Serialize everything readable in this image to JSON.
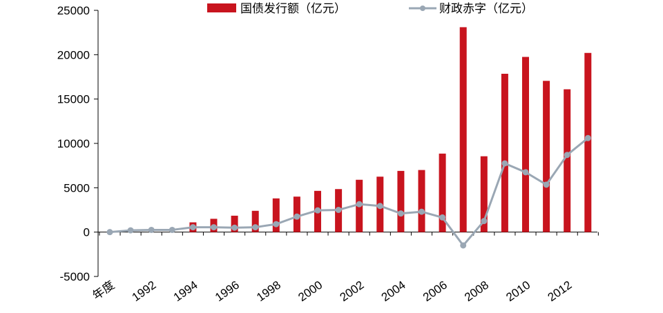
{
  "chart_data": {
    "type": "bar+line",
    "x_label_first": "年度",
    "x_tick_labels": [
      "年度",
      "1992",
      "1994",
      "1996",
      "1998",
      "2000",
      "2002",
      "2004",
      "2006",
      "2008",
      "2010",
      "2012"
    ],
    "categories": [
      "1990",
      "1991",
      "1992",
      "1993",
      "1994",
      "1995",
      "1996",
      "1997",
      "1998",
      "1999",
      "2000",
      "2001",
      "2002",
      "2003",
      "2004",
      "2005",
      "2006",
      "2007",
      "2008",
      "2009",
      "2010",
      "2011",
      "2012",
      "2013"
    ],
    "series": [
      {
        "name": "国债发行额（亿元）",
        "type": "bar",
        "color": "#c8141e",
        "values": [
          0,
          0,
          0,
          0,
          1100,
          1500,
          1850,
          2400,
          3800,
          4000,
          4650,
          4850,
          5900,
          6250,
          6900,
          7000,
          8850,
          23100,
          8550,
          17850,
          19750,
          17050,
          16100,
          20200
        ]
      },
      {
        "name": "财政赤字（亿元）",
        "type": "line",
        "color": "#9aa7b4",
        "values": [
          0,
          200,
          250,
          250,
          550,
          550,
          500,
          550,
          900,
          1750,
          2450,
          2500,
          3150,
          2950,
          2100,
          2300,
          1650,
          -1500,
          1250,
          7750,
          6750,
          5350,
          8700,
          10600
        ]
      }
    ],
    "y_ticks": [
      "25000",
      "20000",
      "15000",
      "10000",
      "5000",
      "0",
      "-5000"
    ],
    "ylim": [
      -5000,
      25000
    ],
    "grid": false,
    "legend_position": "top"
  }
}
